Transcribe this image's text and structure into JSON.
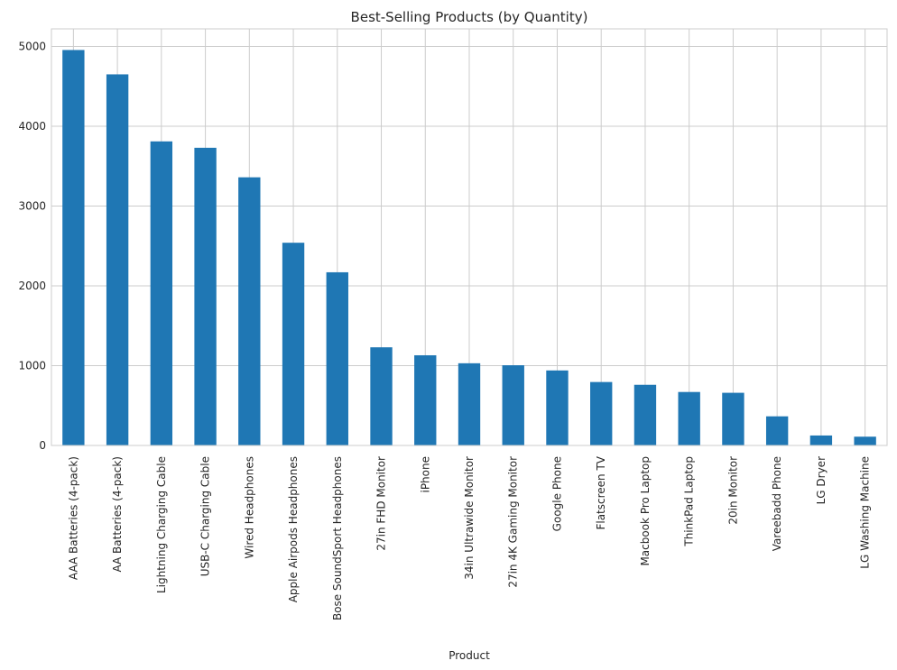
{
  "chart_data": {
    "type": "bar",
    "title": "Best-Selling Products (by Quantity)",
    "xlabel": "Product",
    "ylabel": "",
    "ylim": [
      0,
      5220
    ],
    "yticks": [
      0,
      1000,
      2000,
      3000,
      4000,
      5000
    ],
    "grid": true,
    "bar_color": "#1f77b4",
    "categories": [
      "AAA Batteries (4-pack)",
      "AA Batteries (4-pack)",
      "Lightning Charging Cable",
      "USB-C Charging Cable",
      "Wired Headphones",
      "Apple Airpods Headphones",
      "Bose SoundSport Headphones",
      "27in FHD Monitor",
      "iPhone",
      "34in Ultrawide Monitor",
      "27in 4K Gaming Monitor",
      "Google Phone",
      "Flatscreen TV",
      "Macbook Pro Laptop",
      "ThinkPad Laptop",
      "20in Monitor",
      "Vareebadd Phone",
      "LG Dryer",
      "LG Washing Machine"
    ],
    "values": [
      4955,
      4650,
      3810,
      3730,
      3360,
      2540,
      2170,
      1230,
      1130,
      1030,
      1005,
      940,
      795,
      760,
      670,
      660,
      365,
      125,
      110
    ]
  }
}
